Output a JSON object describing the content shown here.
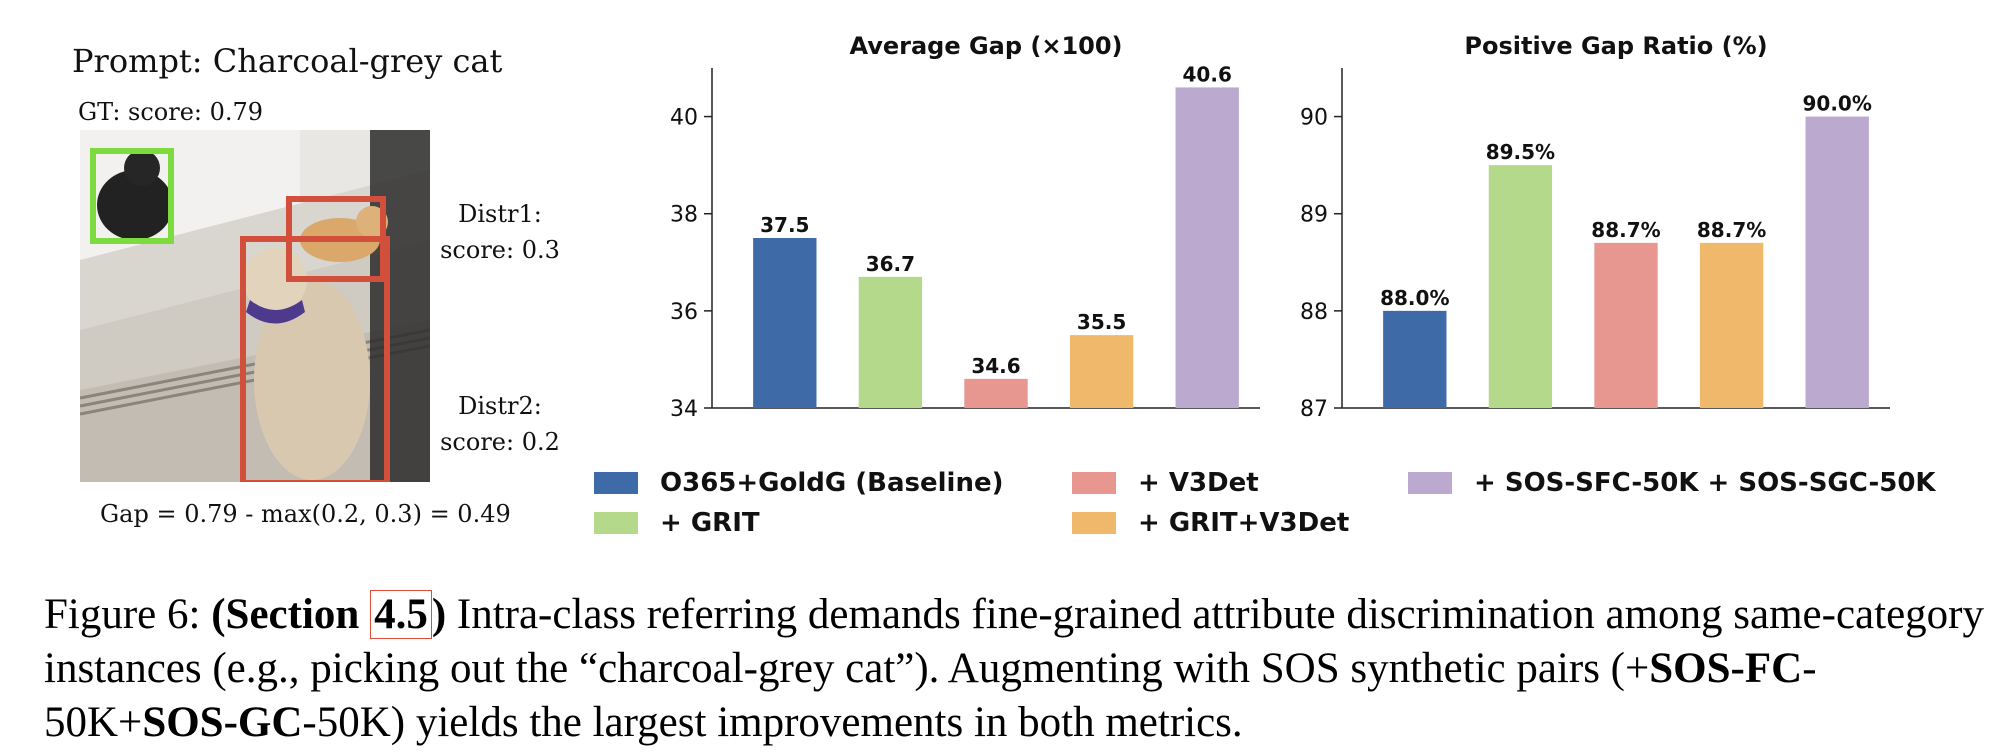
{
  "example": {
    "prompt": "Prompt: Charcoal-grey cat",
    "gt_label": "GT: score: 0.79",
    "distr1": {
      "name": "Distr1:",
      "score": "score: 0.3"
    },
    "distr2": {
      "name": "Distr2:",
      "score": "score: 0.2"
    },
    "gap_formula": "Gap = 0.79 - max(0.2, 0.3) = 0.49",
    "colors": {
      "gt_box": "#7cdb3f",
      "distractor_box": "#d24f3c"
    }
  },
  "chart_data": [
    {
      "type": "bar",
      "title": "Average Gap (×100)",
      "categories": [
        "O365+GoldG (Baseline)",
        "+ GRIT",
        "+ V3Det",
        "+ GRIT+V3Det",
        "+ SOS-SFC-50K + SOS-SGC-50K"
      ],
      "values": [
        37.5,
        36.7,
        34.6,
        35.5,
        40.6
      ],
      "value_labels": [
        "37.5",
        "36.7",
        "34.6",
        "35.5",
        "40.6"
      ],
      "ylim": [
        34,
        41
      ],
      "yticks": [
        34,
        36,
        38,
        40
      ],
      "colors": [
        "#3f6aa8",
        "#b5d98a",
        "#e79690",
        "#efb86a",
        "#bba9cf"
      ]
    },
    {
      "type": "bar",
      "title": "Positive Gap Ratio (%)",
      "categories": [
        "O365+GoldG (Baseline)",
        "+ GRIT",
        "+ V3Det",
        "+ GRIT+V3Det",
        "+ SOS-SFC-50K + SOS-SGC-50K"
      ],
      "values": [
        88.0,
        89.5,
        88.7,
        88.7,
        90.0
      ],
      "value_labels": [
        "88.0%",
        "89.5%",
        "88.7%",
        "88.7%",
        "90.0%"
      ],
      "ylim": [
        87,
        90.5
      ],
      "yticks": [
        87,
        88,
        89,
        90
      ],
      "colors": [
        "#3f6aa8",
        "#b5d98a",
        "#e79690",
        "#efb86a",
        "#bba9cf"
      ]
    }
  ],
  "legend": [
    {
      "label": "O365+GoldG (Baseline)",
      "color": "#3f6aa8"
    },
    {
      "label": "+ GRIT",
      "color": "#b5d98a"
    },
    {
      "label": "+ V3Det",
      "color": "#e79690"
    },
    {
      "label": "+ GRIT+V3Det",
      "color": "#efb86a"
    },
    {
      "label": "+ SOS-SFC-50K + SOS-SGC-50K",
      "color": "#bba9cf"
    }
  ],
  "caption": {
    "prefix": "Figure 6: ",
    "section_open": "(Section ",
    "section_ref": "4.5",
    "section_close": ")",
    "text1": " Intra-class referring demands fine-grained attribute discrimination among same-category instances (e.g., picking out the “charcoal-grey cat”). Augmenting with SOS synthetic pairs (+",
    "sosfc": "SOS-FC",
    "text2": "-50K+",
    "sosgc": "SOS-GC",
    "text3": "-50K) yields the largest improvements in both metrics."
  }
}
